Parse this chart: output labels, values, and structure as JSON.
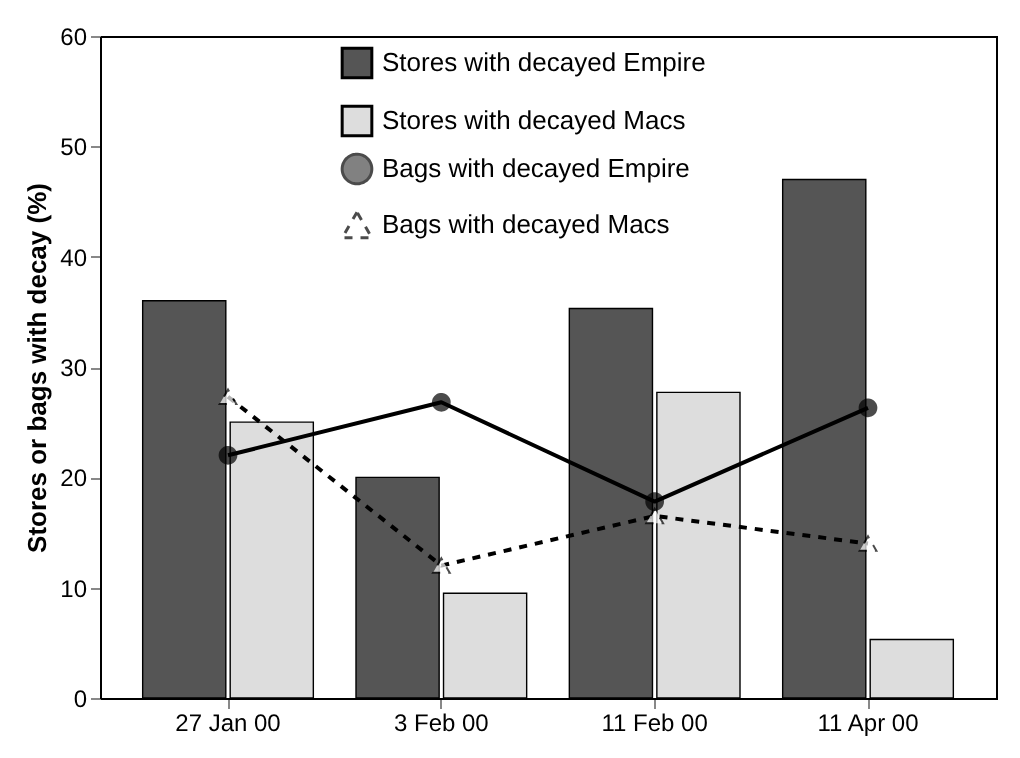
{
  "chart_data": {
    "type": "bar",
    "ylabel": "Stores or bags with decay (%)",
    "categories": [
      "27 Jan 00",
      "3 Feb 00",
      "11 Feb 00",
      "11 Apr 00"
    ],
    "series": [
      {
        "name": "Stores with decayed Empire",
        "color": "#555555",
        "values": [
          36,
          20,
          35.3,
          47
        ]
      },
      {
        "name": "Stores with decayed Macs",
        "color": "#dddddd",
        "values": [
          25,
          9.5,
          27.7,
          5.3
        ]
      },
      {
        "name": "Bags with decayed Empire",
        "type": "line",
        "color": "#000000",
        "marker": "circle",
        "line_style": "solid",
        "values": [
          22,
          26.8,
          17.8,
          26.3
        ]
      },
      {
        "name": "Bags with decayed Macs",
        "type": "line",
        "color": "#000000",
        "marker": "triangle",
        "line_style": "dashed",
        "values": [
          27.3,
          12,
          16.5,
          14
        ]
      }
    ],
    "ylim": [
      0,
      60
    ],
    "yticks": [
      0,
      10,
      20,
      30,
      40,
      50,
      60
    ],
    "grid": false,
    "legend": "top"
  }
}
